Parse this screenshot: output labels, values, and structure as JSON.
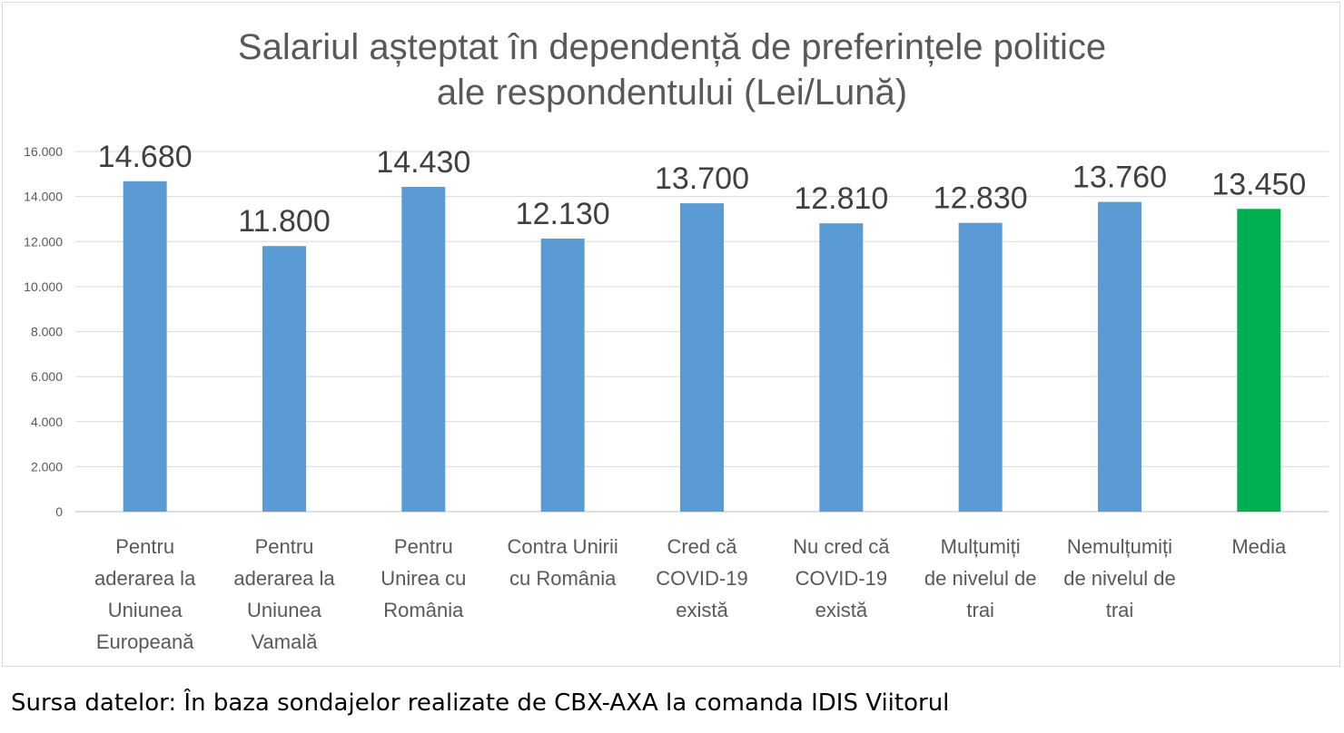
{
  "chart_data": {
    "type": "bar",
    "title": [
      "Salariul așteptat în dependență de preferințele politice",
      "ale respondentului (Lei/Lună)"
    ],
    "categories": [
      [
        "Pentru",
        "aderarea la",
        "Uniunea",
        "Europeană"
      ],
      [
        "Pentru",
        "aderarea la",
        "Uniunea",
        "Vamală"
      ],
      [
        "Pentru",
        "Unirea cu",
        "România"
      ],
      [
        "Contra Unirii",
        "cu România"
      ],
      [
        "Cred că",
        "COVID-19",
        "există"
      ],
      [
        "Nu cred că",
        "COVID-19",
        "există"
      ],
      [
        "Mulțumiți",
        "de nivelul de",
        "trai"
      ],
      [
        "Nemulțumiți",
        "de nivelul de",
        "trai"
      ],
      [
        "Media"
      ]
    ],
    "values": [
      14680,
      11800,
      14430,
      12130,
      13700,
      12810,
      12830,
      13760,
      13450
    ],
    "value_labels": [
      "14.680",
      "11.800",
      "14.430",
      "12.130",
      "13.700",
      "12.810",
      "12.830",
      "13.760",
      "13.450"
    ],
    "y_ticks": [
      0,
      2000,
      4000,
      6000,
      8000,
      10000,
      12000,
      14000,
      16000
    ],
    "y_tick_labels": [
      "0",
      "2.000",
      "4.000",
      "6.000",
      "8.000",
      "10.000",
      "12.000",
      "14.000",
      "16.000"
    ],
    "ylim": [
      0,
      16000
    ],
    "grid": true,
    "colors": {
      "default": "#5b9bd5",
      "highlight": "#00b050"
    },
    "highlight_index": 8
  },
  "source": "Sursa datelor: În baza sondajelor realizate de CBX-AXA la comanda IDIS Viitorul"
}
